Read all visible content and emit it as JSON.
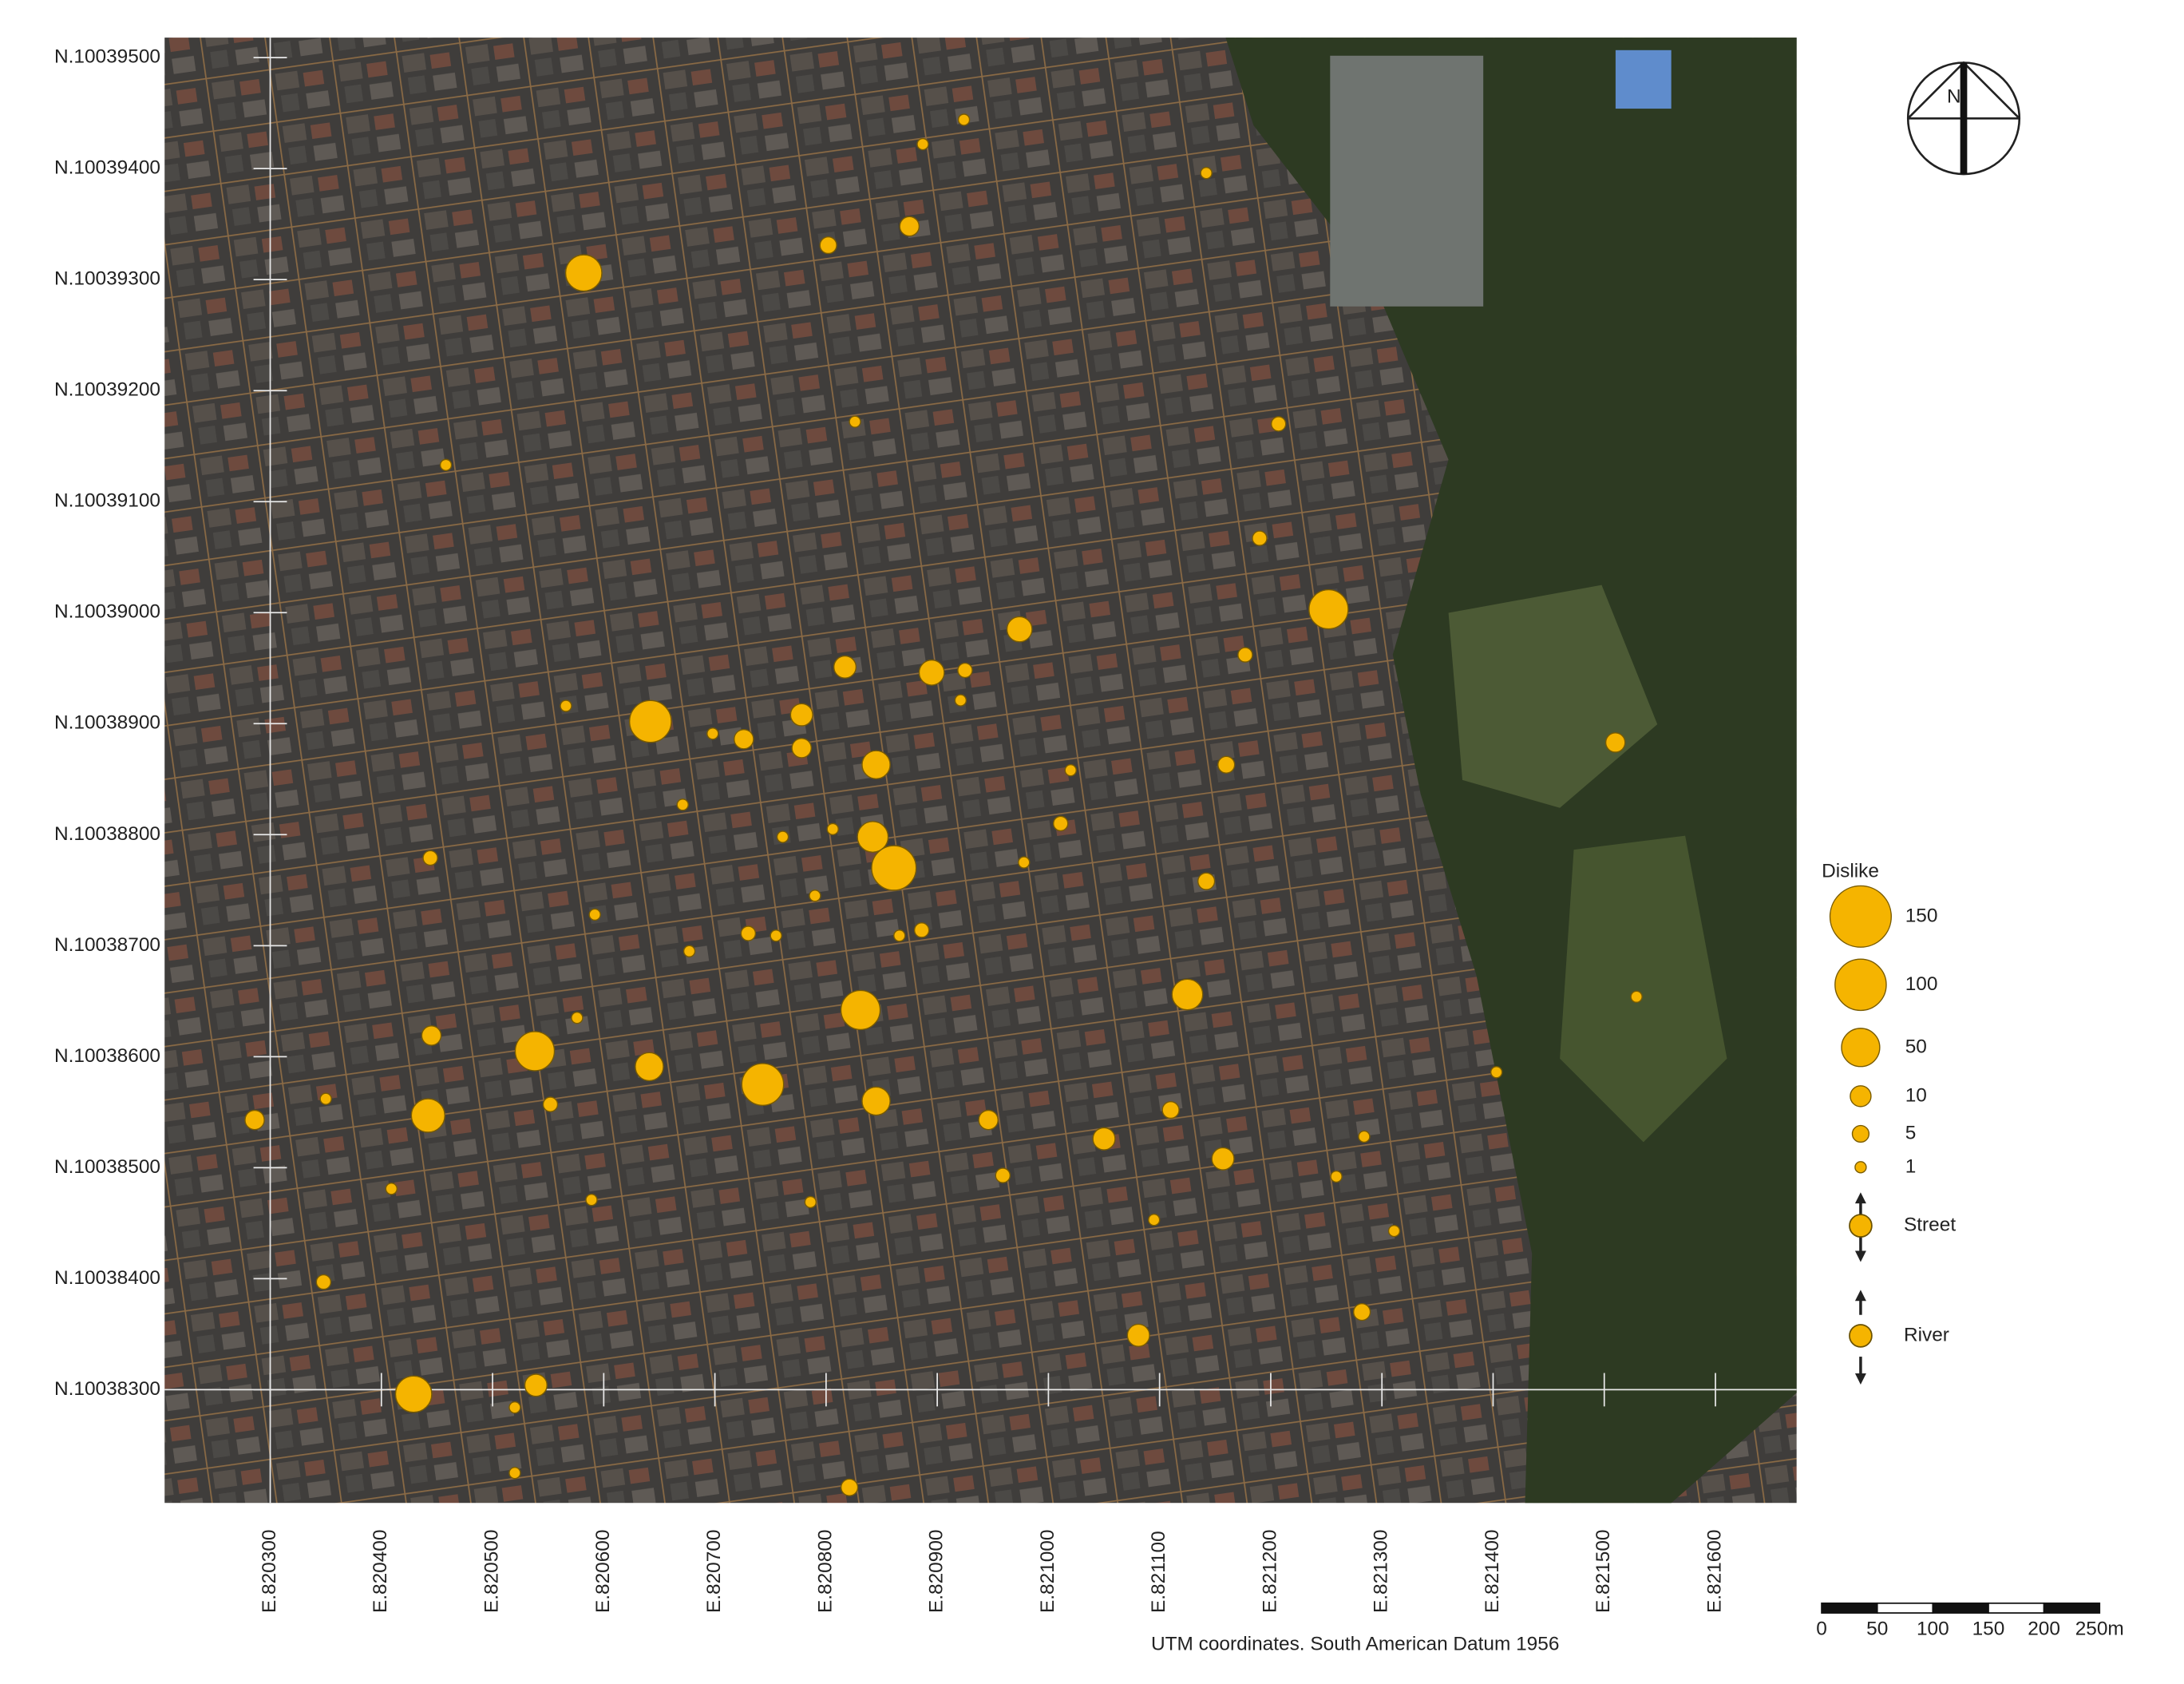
{
  "chart_data": {
    "type": "bubble",
    "color": "#f5b400",
    "xlim": [
      820205,
      821673
    ],
    "ylim": [
      10038198,
      10039518
    ],
    "xticks": [
      {
        "value": 820300,
        "label": "E.820300"
      },
      {
        "value": 820400,
        "label": "E.820400"
      },
      {
        "value": 820500,
        "label": "E.820500"
      },
      {
        "value": 820600,
        "label": "E.820600"
      },
      {
        "value": 820700,
        "label": "E.820700"
      },
      {
        "value": 820800,
        "label": "E.820800"
      },
      {
        "value": 820900,
        "label": "E.820900"
      },
      {
        "value": 821000,
        "label": "E.821000"
      },
      {
        "value": 821100,
        "label": "E.821100"
      },
      {
        "value": 821200,
        "label": "E.821200"
      },
      {
        "value": 821300,
        "label": "E.821300"
      },
      {
        "value": 821400,
        "label": "E.821400"
      },
      {
        "value": 821500,
        "label": "E.821500"
      },
      {
        "value": 821600,
        "label": "E.821600"
      }
    ],
    "yticks": [
      {
        "value": 10038300,
        "label": "N.10038300"
      },
      {
        "value": 10038400,
        "label": "N.10038400"
      },
      {
        "value": 10038500,
        "label": "N.10038500"
      },
      {
        "value": 10038600,
        "label": "N.10038600"
      },
      {
        "value": 10038700,
        "label": "N.10038700"
      },
      {
        "value": 10038800,
        "label": "N.10038800"
      },
      {
        "value": 10038900,
        "label": "N.10038900"
      },
      {
        "value": 10039000,
        "label": "N.10039000"
      },
      {
        "value": 10039100,
        "label": "N.10039100"
      },
      {
        "value": 10039200,
        "label": "N.10039200"
      },
      {
        "value": 10039300,
        "label": "N.10039300"
      },
      {
        "value": 10039400,
        "label": "N.10039400"
      },
      {
        "value": 10039500,
        "label": "N.10039500"
      }
    ],
    "x": [
      820582,
      820875,
      820802,
      820887,
      820924,
      821142,
      820826,
      820458,
      821207,
      821190,
      821252,
      820974,
      821177,
      820817,
      820895,
      820925,
      820921,
      820642,
      820566,
      820778,
      820726,
      820778,
      820845,
      820698,
      821510,
      821160,
      821020,
      820671,
      821011,
      820842,
      820861,
      820761,
      820806,
      820978,
      820444,
      821142,
      820790,
      820592,
      820730,
      820755,
      820866,
      820886,
      820677,
      821125,
      820831,
      821529,
      820576,
      820445,
      820538,
      820641,
      821403,
      820350,
      820743,
      820845,
      820552,
      820286,
      820442,
      820946,
      821110,
      821050,
      821157,
      821284,
      820959,
      821259,
      820409,
      820589,
      820786,
      821095,
      821311,
      820348,
      821282,
      821081,
      820539,
      820429,
      820520,
      820520,
      820821
    ],
    "y": [
      10039306,
      10039348,
      10039331,
      10039422,
      10039444,
      10039396,
      10039172,
      10039133,
      10039170,
      10039067,
      10039003,
      10038985,
      10038962,
      10038951,
      10038946,
      10038948,
      10038921,
      10038902,
      10038916,
      10038908,
      10038886,
      10038878,
      10038863,
      10038891,
      10038883,
      10038863,
      10038858,
      10038827,
      10038810,
      10038798,
      10038770,
      10038798,
      10038805,
      10038775,
      10038779,
      10038758,
      10038745,
      10038728,
      10038711,
      10038709,
      10038709,
      10038714,
      10038695,
      10038656,
      10038642,
      10038654,
      10038635,
      10038619,
      10038605,
      10038591,
      10038586,
      10038562,
      10038575,
      10038560,
      10038557,
      10038543,
      10038547,
      10038543,
      10038552,
      10038526,
      10038508,
      10038528,
      10038493,
      10038492,
      10038481,
      10038471,
      10038469,
      10038453,
      10038443,
      10038397,
      10038370,
      10038349,
      10038304,
      10038296,
      10038284,
      10038225,
      10038212
    ],
    "sizes": [
      44,
      8,
      5,
      1,
      1,
      1,
      1,
      1,
      3,
      3,
      53,
      17,
      3,
      12,
      17,
      3,
      1,
      62,
      1,
      12,
      8,
      8,
      23,
      1,
      8,
      5,
      1,
      1,
      3,
      29,
      72,
      1,
      1,
      1,
      3,
      5,
      1,
      1,
      3,
      1,
      1,
      3,
      1,
      29,
      53,
      1,
      1,
      8,
      53,
      23,
      1,
      1,
      62,
      23,
      3,
      8,
      36,
      8,
      5,
      12,
      12,
      1,
      3,
      1,
      1,
      1,
      1,
      1,
      1,
      3,
      5,
      12,
      12,
      44,
      1,
      1,
      5
    ],
    "caption": "UTM coordinates. South American Datum 1956",
    "legend": {
      "title": "Dislike",
      "sizes": [
        150,
        100,
        50,
        10,
        5,
        1
      ],
      "types": [
        "Street",
        "River"
      ]
    },
    "north": "N",
    "scale_bar": [
      0,
      50,
      100,
      150,
      200,
      {
        "value": 250,
        "label": "250m"
      }
    ]
  }
}
